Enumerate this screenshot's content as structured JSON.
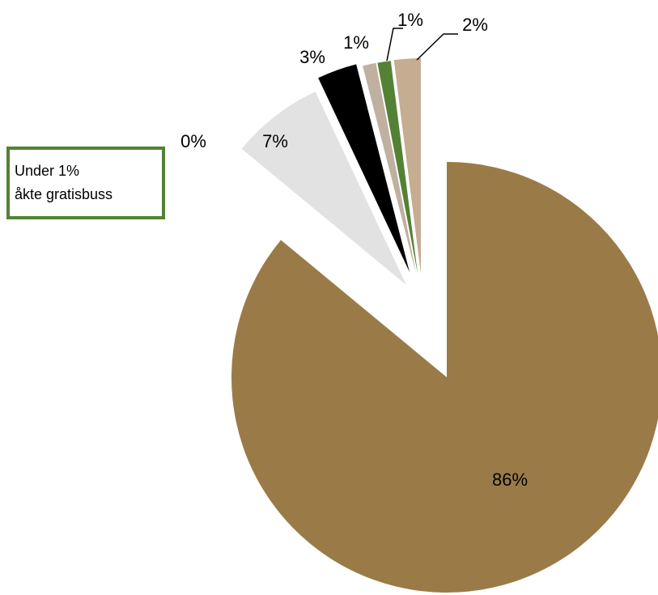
{
  "chart_data": {
    "type": "pie",
    "title": "",
    "slices": [
      {
        "label": "86%",
        "value": 86,
        "color": "#9a7b48"
      },
      {
        "label": "0%",
        "value": 0,
        "color": "#ffffff"
      },
      {
        "label": "7%",
        "value": 7,
        "color": "#e2e2e2"
      },
      {
        "label": "3%",
        "value": 3,
        "color": "#000000"
      },
      {
        "label": "1%",
        "value": 1,
        "color": "#bfb0a0"
      },
      {
        "label": "1%",
        "value": 1,
        "color": "#548235"
      },
      {
        "label": "2%",
        "value": 2,
        "color": "#c4ad91"
      }
    ]
  },
  "callout": {
    "line1": "Under 1%",
    "line2": "åkte gratisbuss",
    "border_color": "#548235"
  }
}
